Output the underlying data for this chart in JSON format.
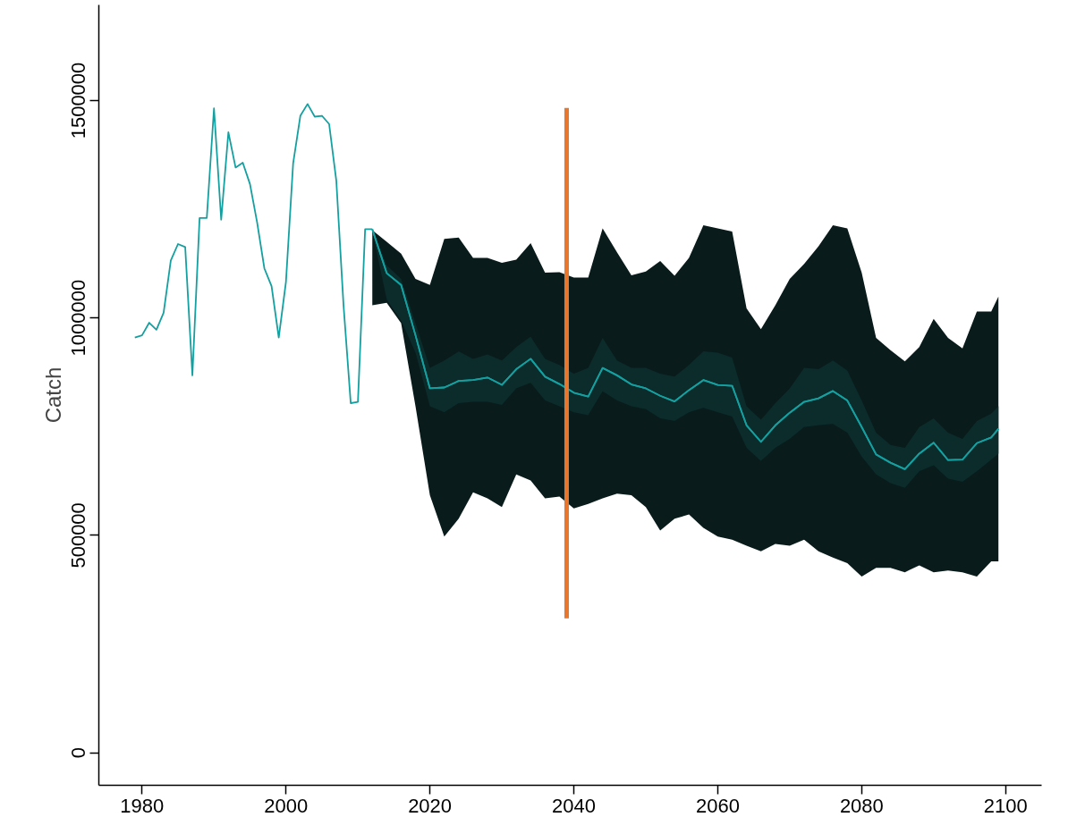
{
  "chart_data": {
    "type": "line",
    "ylabel": "Catch",
    "xlim": [
      1974,
      2105
    ],
    "ylim": [
      -75000,
      1720000
    ],
    "xticks": [
      1980,
      2000,
      2020,
      2040,
      2060,
      2080,
      2100
    ],
    "yticks": [
      0,
      500000,
      1000000,
      1500000
    ],
    "grid": false,
    "marker": "none",
    "line_style": "solid",
    "series": [
      {
        "color": "#14a0a0",
        "x": [
          2012,
          2014,
          2016,
          2018,
          2020,
          2022,
          2024,
          2026,
          2028,
          2030,
          2032,
          2034,
          2036,
          2038,
          2040,
          2042,
          2044,
          2046,
          2048,
          2050,
          2052,
          2054,
          2056,
          2058,
          2060,
          2062,
          2064,
          2066,
          2068,
          2070,
          2072,
          2074,
          2076,
          2078,
          2080,
          2082,
          2084,
          2086,
          2088,
          2090,
          2092,
          2094,
          2096,
          2098,
          2099
        ],
        "values": [
          1204000,
          1103000,
          1076000,
          960000,
          838000,
          840000,
          855000,
          857000,
          863000,
          846000,
          882000,
          906000,
          865000,
          848000,
          828000,
          819000,
          885000,
          868000,
          847000,
          838000,
          821000,
          808000,
          834000,
          857000,
          846000,
          844000,
          753000,
          715000,
          753000,
          782000,
          807000,
          815000,
          832000,
          810000,
          749000,
          686000,
          667000,
          652000,
          688000,
          713000,
          673000,
          674000,
          712000,
          725000,
          745000
        ],
        "upper": [
          1202000,
          1175000,
          1148000,
          1090000,
          1076000,
          1182000,
          1185000,
          1138000,
          1138000,
          1127000,
          1134000,
          1172000,
          1104000,
          1105000,
          1093000,
          1093000,
          1206000,
          1151000,
          1098000,
          1107000,
          1131000,
          1097000,
          1138000,
          1213000,
          1206000,
          1199000,
          1022000,
          974000,
          1029000,
          1090000,
          1124000,
          1165000,
          1213000,
          1206000,
          1104000,
          954000,
          926000,
          900000,
          933000,
          998000,
          954000,
          930000,
          1015000,
          1015000,
          1049000
        ],
        "lower": [
          1029000,
          1035000,
          988000,
          797000,
          592000,
          497000,
          538000,
          599000,
          585000,
          565000,
          640000,
          626000,
          585000,
          589000,
          562000,
          572000,
          585000,
          596000,
          592000,
          565000,
          511000,
          538000,
          548000,
          517000,
          497000,
          490000,
          476000,
          463000,
          480000,
          476000,
          490000,
          463000,
          449000,
          436000,
          405000,
          425000,
          425000,
          415000,
          431000,
          415000,
          419000,
          415000,
          405000,
          440000,
          440000
        ]
      },
      {
        "color": "#14a0a0",
        "x": [
          2012,
          2014,
          2016,
          2018,
          2020,
          2022,
          2024,
          2026,
          2028,
          2030,
          2032,
          2034,
          2036,
          2038,
          2040,
          2042,
          2044,
          2046,
          2048,
          2050,
          2052,
          2054,
          2056,
          2058,
          2060,
          2062,
          2064,
          2066,
          2068,
          2070,
          2072,
          2074,
          2076,
          2078,
          2080,
          2082,
          2084,
          2086,
          2088,
          2090,
          2092,
          2094,
          2096,
          2098,
          2099
        ],
        "values": [
          1204000,
          1103000,
          1076000,
          960000,
          838000,
          840000,
          855000,
          857000,
          863000,
          846000,
          882000,
          906000,
          865000,
          848000,
          828000,
          819000,
          885000,
          868000,
          847000,
          838000,
          821000,
          808000,
          834000,
          857000,
          846000,
          844000,
          753000,
          715000,
          753000,
          782000,
          807000,
          815000,
          832000,
          810000,
          749000,
          686000,
          667000,
          652000,
          688000,
          713000,
          673000,
          674000,
          712000,
          725000,
          745000
        ],
        "upper": [
          1204000,
          1121000,
          1090000,
          988000,
          885000,
          902000,
          923000,
          906000,
          916000,
          902000,
          933000,
          957000,
          906000,
          892000,
          872000,
          885000,
          954000,
          902000,
          885000,
          885000,
          872000,
          865000,
          892000,
          923000,
          920000,
          909000,
          797000,
          766000,
          804000,
          838000,
          885000,
          882000,
          902000,
          879000,
          810000,
          736000,
          708000,
          701000,
          749000,
          769000,
          736000,
          722000,
          763000,
          780000,
          797000
        ],
        "lower": [
          1200000,
          1042000,
          994000,
          920000,
          797000,
          783000,
          804000,
          807000,
          807000,
          800000,
          838000,
          851000,
          810000,
          797000,
          783000,
          776000,
          831000,
          810000,
          797000,
          790000,
          769000,
          763000,
          783000,
          793000,
          783000,
          773000,
          701000,
          671000,
          701000,
          722000,
          749000,
          753000,
          756000,
          736000,
          681000,
          640000,
          620000,
          609000,
          647000,
          661000,
          630000,
          623000,
          647000,
          674000,
          688000
        ]
      },
      {
        "color": "#14a0a0",
        "x": [
          1979,
          1980,
          1981,
          1982,
          1983,
          1984,
          1985,
          1986,
          1987,
          1988,
          1989,
          1990,
          1991,
          1992,
          1993,
          1994,
          1995,
          1996,
          1997,
          1998,
          1999,
          2000,
          2001,
          2002,
          2003,
          2004,
          2005,
          2006,
          2007,
          2008,
          2009,
          2010,
          2011,
          2012
        ],
        "values": [
          955000,
          960000,
          989000,
          973000,
          1012000,
          1132000,
          1170000,
          1163000,
          868000,
          1230000,
          1230000,
          1482000,
          1226000,
          1427000,
          1346000,
          1357000,
          1308000,
          1219000,
          1114000,
          1073000,
          955000,
          1083000,
          1356000,
          1465000,
          1492000,
          1463000,
          1465000,
          1446000,
          1315000,
          1029000,
          804000,
          807000,
          1204000,
          1204000
        ]
      },
      {
        "color": "#e8762c",
        "x": [
          2039,
          2039
        ],
        "values": [
          309000,
          1483000
        ]
      }
    ]
  }
}
